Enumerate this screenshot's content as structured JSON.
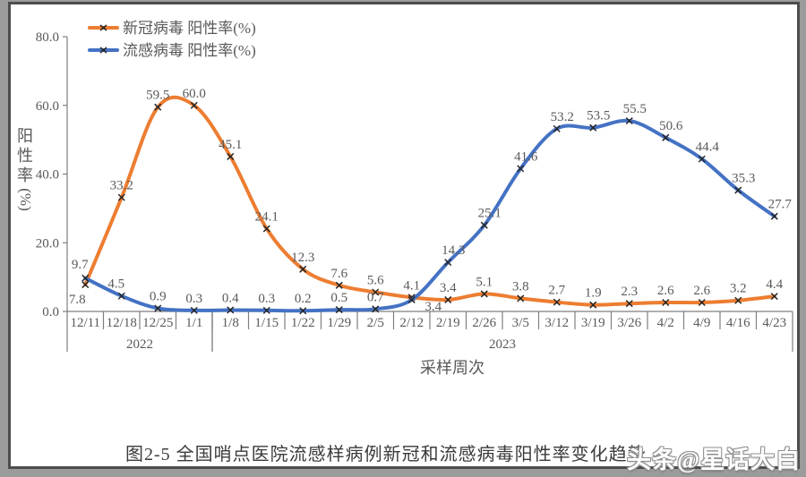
{
  "caption": "图2-5  全国哨点医院流感样病例新冠和流感病毒阳性率变化趋势",
  "watermark": "头条@星话大白",
  "chart_data": {
    "type": "line",
    "smooth": true,
    "marker": "x",
    "grid": false,
    "legend_position": "top-left",
    "xlabel": "采样周次",
    "ylabel_chars": [
      "阳",
      "性",
      "率"
    ],
    "ylabel_unit": "(%)",
    "ylim": [
      0,
      80
    ],
    "yticks": [
      "0.0",
      "20.0",
      "40.0",
      "60.0",
      "80.0"
    ],
    "categories": [
      "12/11",
      "12/18",
      "12/25",
      "1/1",
      "1/8",
      "1/15",
      "1/22",
      "1/29",
      "2/5",
      "2/12",
      "2/19",
      "2/26",
      "3/5",
      "3/12",
      "3/19",
      "3/26",
      "4/2",
      "4/9",
      "4/16",
      "4/23"
    ],
    "year_groups": [
      {
        "label": "2022",
        "from": 0,
        "to": 3
      },
      {
        "label": "2023",
        "from": 4,
        "to": 19
      }
    ],
    "series": [
      {
        "name": "新冠病毒 阳性率(%)",
        "color": "#ED7D31",
        "values": [
          7.8,
          33.2,
          59.5,
          60.0,
          45.1,
          24.1,
          12.3,
          7.6,
          5.6,
          4.1,
          3.4,
          5.1,
          3.8,
          2.7,
          1.9,
          2.3,
          2.6,
          2.6,
          3.2,
          4.4
        ]
      },
      {
        "name": "流感病毒 阳性率(%)",
        "color": "#4472C4",
        "values": [
          9.7,
          4.5,
          0.9,
          0.3,
          0.4,
          0.3,
          0.2,
          0.5,
          0.7,
          3.4,
          14.3,
          25.1,
          41.6,
          53.2,
          53.5,
          55.5,
          50.6,
          44.4,
          35.3,
          27.7
        ]
      }
    ],
    "colors": {
      "axis": "#7f7f7f",
      "tick_text": "#595959",
      "data_label": "#595959",
      "marker": "#262626"
    }
  }
}
